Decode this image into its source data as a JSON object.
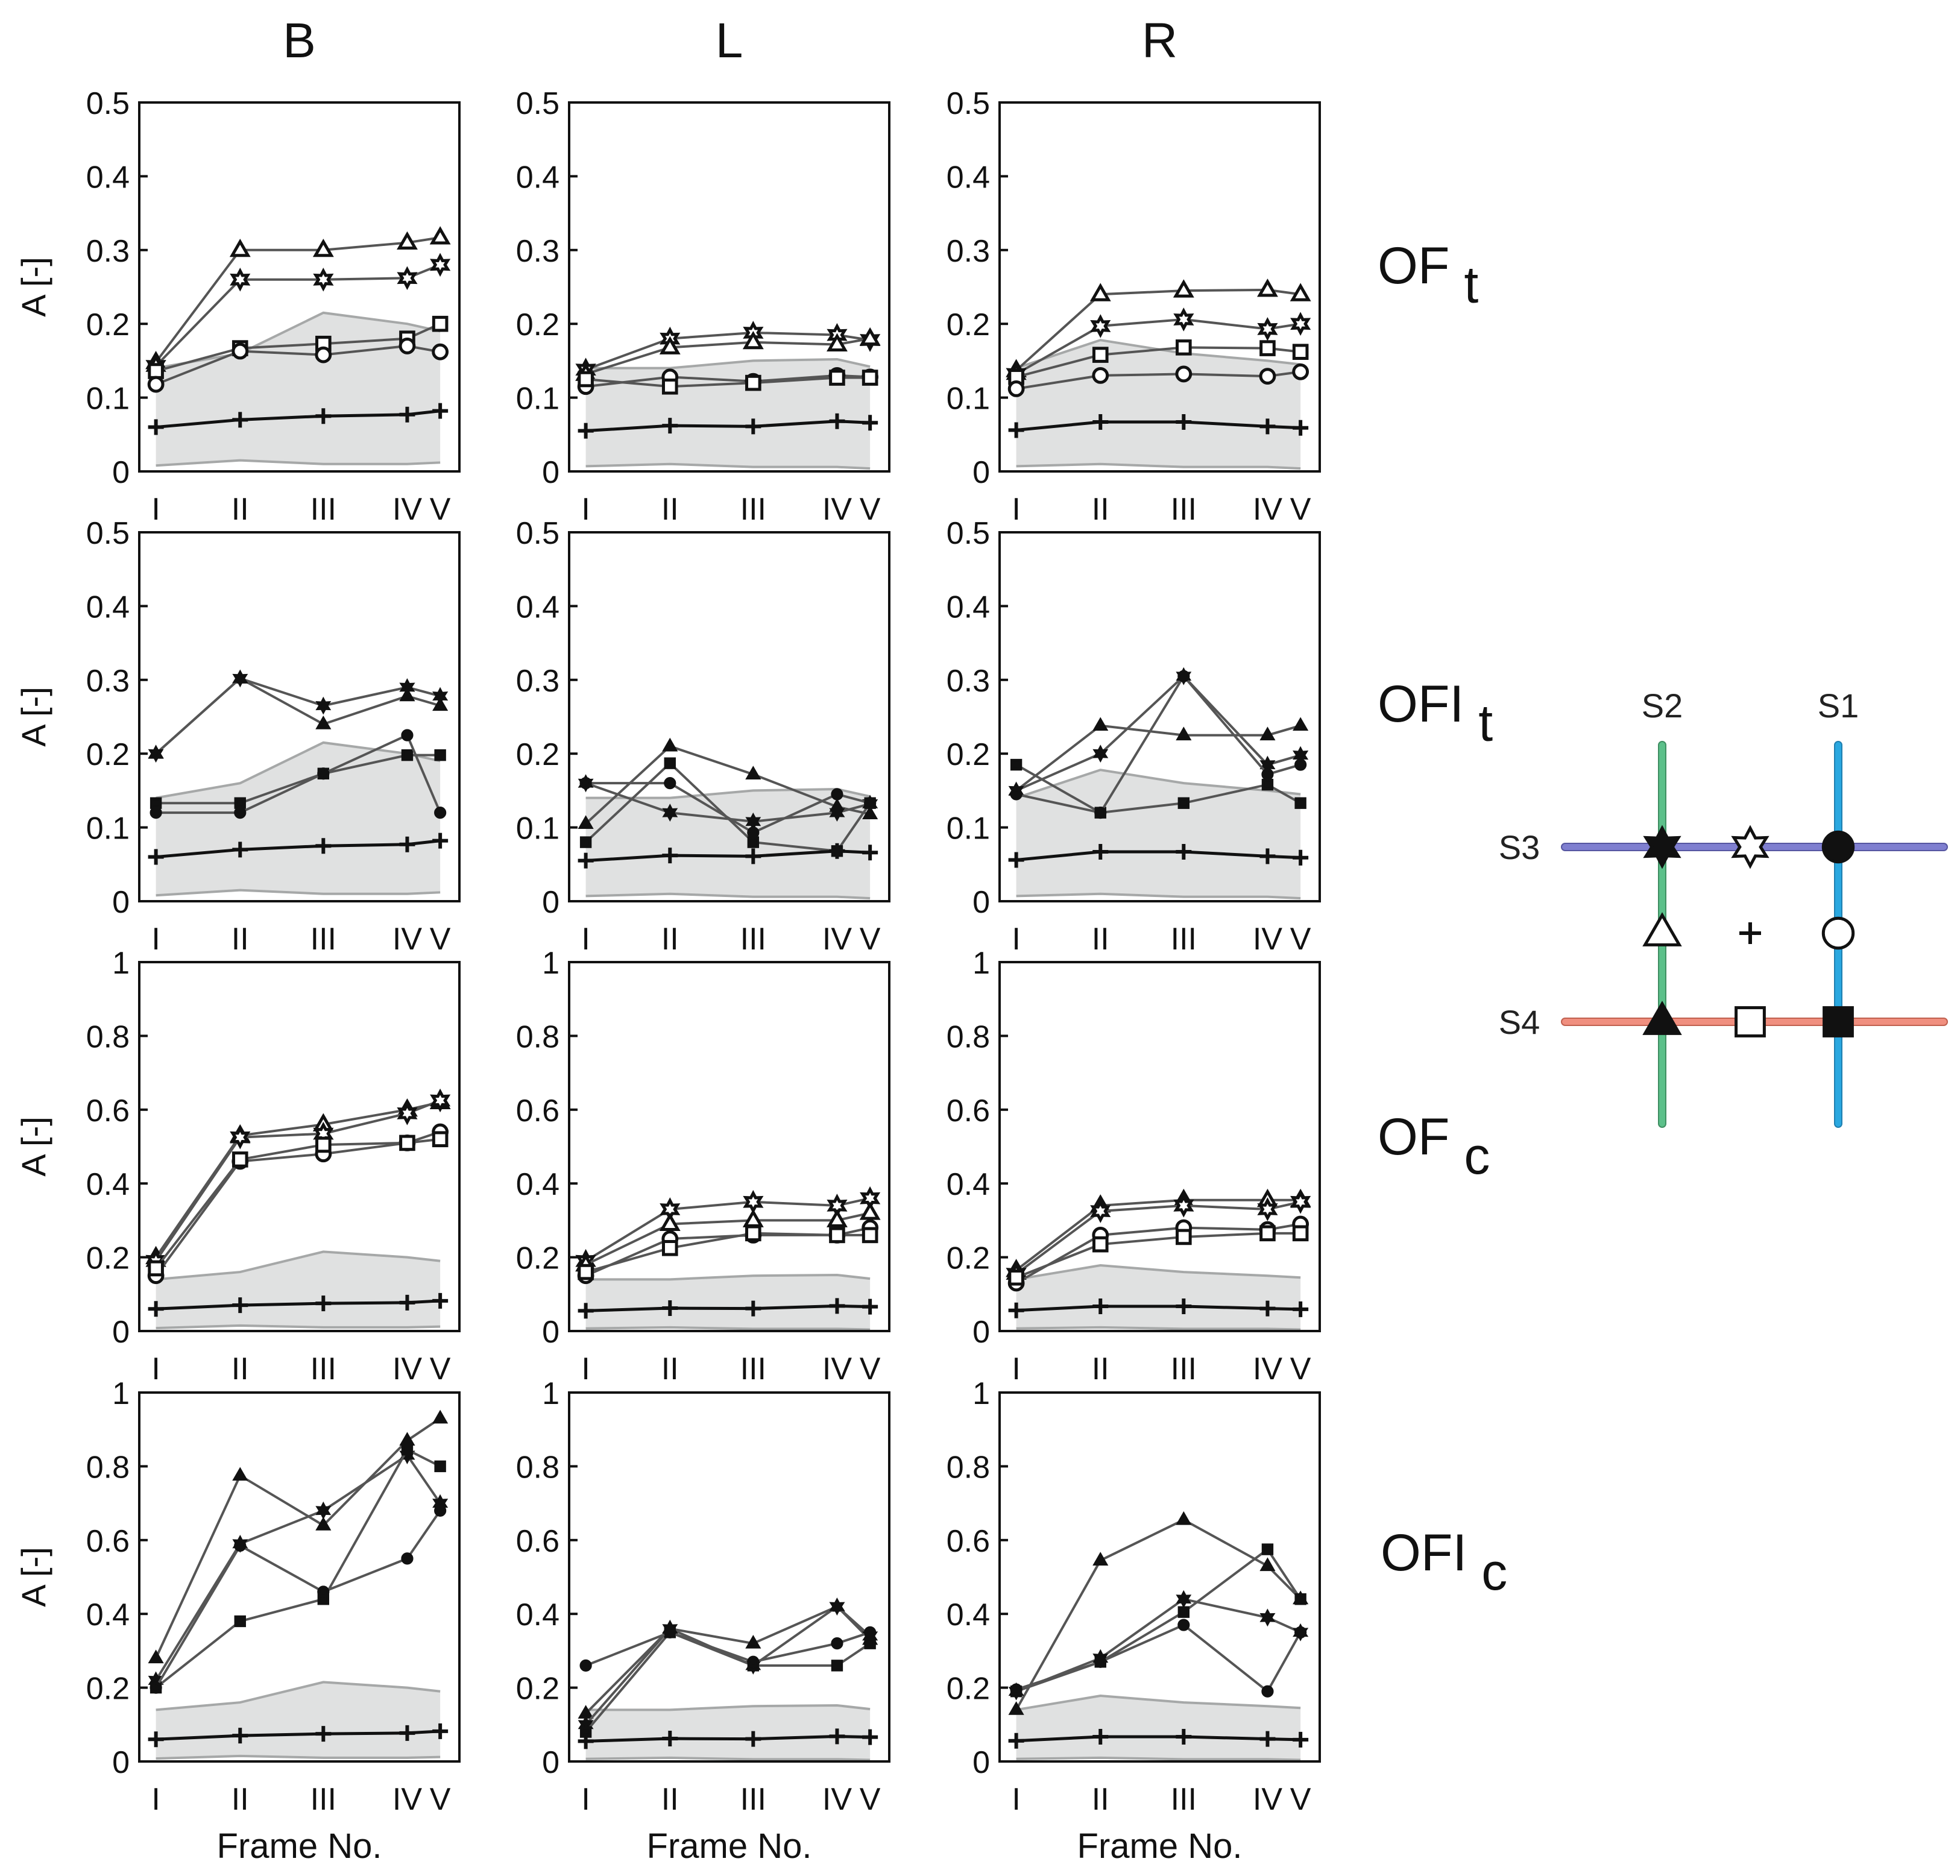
{
  "figure": {
    "columns": [
      "B",
      "L",
      "R"
    ],
    "rows": [
      {
        "label": "OF",
        "sub": "t"
      },
      {
        "label": "OFI",
        "sub": "t"
      },
      {
        "label": "OF",
        "sub": "c"
      },
      {
        "label": "OFI",
        "sub": "c"
      }
    ],
    "xlabel": "Frame No.",
    "ylabel": "A [-]",
    "categories": [
      "I",
      "II",
      "III",
      "IV",
      "V"
    ]
  },
  "legend": {
    "lines": [
      "S1",
      "S2",
      "S3",
      "S4"
    ],
    "colors": {
      "S1": "#2aa8e0",
      "S2": "#5cc08a",
      "S3": "#7f7fd0",
      "S4": "#f08f7f"
    }
  },
  "chart_data": [
    {
      "type": "line",
      "col": "B",
      "row": "OFt",
      "ylim": [
        0,
        0.5
      ],
      "yticks": [
        "0",
        "0.1",
        "0.2",
        "0.3",
        "0.4",
        "0.5"
      ],
      "band": {
        "upper": [
          0.14,
          0.16,
          0.215,
          0.2,
          0.19
        ],
        "lower": [
          0.008,
          0.015,
          0.01,
          0.01,
          0.012
        ]
      },
      "series": [
        {
          "name": "open-triangle",
          "marker": "tri-open",
          "values": [
            0.148,
            0.3,
            0.3,
            0.31,
            0.317
          ]
        },
        {
          "name": "open-star",
          "marker": "star-open",
          "values": [
            0.143,
            0.26,
            0.26,
            0.262,
            0.28
          ]
        },
        {
          "name": "open-square",
          "marker": "sq-open",
          "values": [
            0.136,
            0.167,
            0.173,
            0.18,
            0.2
          ]
        },
        {
          "name": "open-circle",
          "marker": "circ-open",
          "values": [
            0.118,
            0.163,
            0.158,
            0.17,
            0.162
          ]
        },
        {
          "name": "cross",
          "marker": "plus",
          "values": [
            0.06,
            0.07,
            0.075,
            0.077,
            0.082
          ]
        }
      ]
    },
    {
      "type": "line",
      "col": "L",
      "row": "OFt",
      "ylim": [
        0,
        0.5
      ],
      "yticks": [
        "0",
        "0.1",
        "0.2",
        "0.3",
        "0.4",
        "0.5"
      ],
      "band": {
        "upper": [
          0.14,
          0.14,
          0.15,
          0.152,
          0.142
        ],
        "lower": [
          0.007,
          0.01,
          0.006,
          0.006,
          0.004
        ]
      },
      "series": [
        {
          "name": "open-star",
          "marker": "star-open",
          "values": [
            0.138,
            0.18,
            0.188,
            0.185,
            0.178
          ]
        },
        {
          "name": "open-triangle",
          "marker": "tri-open",
          "values": [
            0.132,
            0.168,
            0.175,
            0.172,
            0.18
          ]
        },
        {
          "name": "open-circle",
          "marker": "circ-open",
          "values": [
            0.115,
            0.128,
            0.122,
            0.13,
            0.128
          ]
        },
        {
          "name": "open-square",
          "marker": "sq-open",
          "values": [
            0.125,
            0.115,
            0.12,
            0.127,
            0.127
          ]
        },
        {
          "name": "cross",
          "marker": "plus",
          "values": [
            0.055,
            0.062,
            0.061,
            0.068,
            0.066
          ]
        }
      ]
    },
    {
      "type": "line",
      "col": "R",
      "row": "OFt",
      "ylim": [
        0,
        0.5
      ],
      "yticks": [
        "0",
        "0.1",
        "0.2",
        "0.3",
        "0.4",
        "0.5"
      ],
      "band": {
        "upper": [
          0.14,
          0.178,
          0.16,
          0.15,
          0.145
        ],
        "lower": [
          0.007,
          0.01,
          0.006,
          0.006,
          0.004
        ]
      },
      "series": [
        {
          "name": "open-triangle",
          "marker": "tri-open",
          "values": [
            0.137,
            0.24,
            0.245,
            0.246,
            0.24
          ]
        },
        {
          "name": "open-star",
          "marker": "star-open",
          "values": [
            0.132,
            0.197,
            0.206,
            0.193,
            0.2
          ]
        },
        {
          "name": "open-square",
          "marker": "sq-open",
          "values": [
            0.128,
            0.158,
            0.168,
            0.167,
            0.162
          ]
        },
        {
          "name": "open-circle",
          "marker": "circ-open",
          "values": [
            0.112,
            0.13,
            0.132,
            0.129,
            0.135
          ]
        },
        {
          "name": "cross",
          "marker": "plus",
          "values": [
            0.056,
            0.067,
            0.067,
            0.061,
            0.059
          ]
        }
      ]
    },
    {
      "type": "line",
      "col": "B",
      "row": "OFIt",
      "ylim": [
        0,
        0.5
      ],
      "yticks": [
        "0",
        "0.1",
        "0.2",
        "0.3",
        "0.4",
        "0.5"
      ],
      "band": {
        "upper": [
          0.14,
          0.16,
          0.215,
          0.2,
          0.19
        ],
        "lower": [
          0.008,
          0.015,
          0.01,
          0.01,
          0.012
        ]
      },
      "series": [
        {
          "name": "filled-triangle",
          "marker": "tri-fill",
          "values": [
            0.2,
            0.302,
            0.24,
            0.278,
            0.265
          ]
        },
        {
          "name": "filled-star",
          "marker": "star-fill",
          "values": [
            0.2,
            0.302,
            0.265,
            0.29,
            0.278
          ]
        },
        {
          "name": "filled-square",
          "marker": "sq-fill",
          "values": [
            0.133,
            0.133,
            0.173,
            0.198,
            0.198
          ]
        },
        {
          "name": "filled-circle",
          "marker": "circ-fill",
          "values": [
            0.12,
            0.12,
            0.173,
            0.225,
            0.12
          ]
        },
        {
          "name": "cross",
          "marker": "plus",
          "values": [
            0.06,
            0.07,
            0.075,
            0.077,
            0.082
          ]
        }
      ]
    },
    {
      "type": "line",
      "col": "L",
      "row": "OFIt",
      "ylim": [
        0,
        0.5
      ],
      "yticks": [
        "0",
        "0.1",
        "0.2",
        "0.3",
        "0.4",
        "0.5"
      ],
      "band": {
        "upper": [
          0.14,
          0.14,
          0.15,
          0.152,
          0.142
        ],
        "lower": [
          0.007,
          0.01,
          0.006,
          0.006,
          0.004
        ]
      },
      "series": [
        {
          "name": "filled-triangle",
          "marker": "tri-fill",
          "values": [
            0.105,
            0.21,
            0.172,
            0.128,
            0.118
          ]
        },
        {
          "name": "filled-star",
          "marker": "star-fill",
          "values": [
            0.16,
            0.12,
            0.108,
            0.12,
            0.132
          ]
        },
        {
          "name": "filled-square",
          "marker": "sq-fill",
          "values": [
            0.08,
            0.187,
            0.08,
            0.068,
            0.133
          ]
        },
        {
          "name": "filled-circle",
          "marker": "circ-fill",
          "values": [
            0.16,
            0.16,
            0.093,
            0.145,
            0.133
          ]
        },
        {
          "name": "cross",
          "marker": "plus",
          "values": [
            0.055,
            0.062,
            0.061,
            0.068,
            0.066
          ]
        }
      ]
    },
    {
      "type": "line",
      "col": "R",
      "row": "OFIt",
      "ylim": [
        0,
        0.5
      ],
      "yticks": [
        "0",
        "0.1",
        "0.2",
        "0.3",
        "0.4",
        "0.5"
      ],
      "band": {
        "upper": [
          0.14,
          0.178,
          0.16,
          0.15,
          0.145
        ],
        "lower": [
          0.007,
          0.01,
          0.006,
          0.006,
          0.004
        ]
      },
      "series": [
        {
          "name": "filled-triangle",
          "marker": "tri-fill",
          "values": [
            0.15,
            0.238,
            0.225,
            0.225,
            0.238
          ]
        },
        {
          "name": "filled-star",
          "marker": "star-fill",
          "values": [
            0.15,
            0.2,
            0.305,
            0.185,
            0.198
          ]
        },
        {
          "name": "filled-square",
          "marker": "sq-fill",
          "values": [
            0.185,
            0.12,
            0.133,
            0.158,
            0.133
          ]
        },
        {
          "name": "filled-circle",
          "marker": "circ-fill",
          "values": [
            0.145,
            0.12,
            0.305,
            0.172,
            0.185
          ]
        },
        {
          "name": "cross",
          "marker": "plus",
          "values": [
            0.056,
            0.067,
            0.067,
            0.061,
            0.059
          ]
        }
      ]
    },
    {
      "type": "line",
      "col": "B",
      "row": "OFc",
      "ylim": [
        0,
        1
      ],
      "yticks": [
        "0",
        "0.2",
        "0.4",
        "0.6",
        "0.8",
        "1"
      ],
      "band": {
        "upper": [
          0.14,
          0.16,
          0.215,
          0.2,
          0.19
        ],
        "lower": [
          0.008,
          0.015,
          0.01,
          0.01,
          0.012
        ]
      },
      "series": [
        {
          "name": "open-triangle",
          "marker": "tri-open",
          "values": [
            0.2,
            0.53,
            0.56,
            0.6,
            0.62
          ]
        },
        {
          "name": "open-star",
          "marker": "star-open",
          "values": [
            0.19,
            0.525,
            0.535,
            0.59,
            0.625
          ]
        },
        {
          "name": "open-circle",
          "marker": "circ-open",
          "values": [
            0.15,
            0.46,
            0.48,
            0.51,
            0.54
          ]
        },
        {
          "name": "open-square",
          "marker": "sq-open",
          "values": [
            0.17,
            0.465,
            0.505,
            0.51,
            0.52
          ]
        },
        {
          "name": "cross",
          "marker": "plus",
          "values": [
            0.06,
            0.07,
            0.075,
            0.077,
            0.082
          ]
        }
      ]
    },
    {
      "type": "line",
      "col": "L",
      "row": "OFc",
      "ylim": [
        0,
        1
      ],
      "yticks": [
        "0",
        "0.2",
        "0.4",
        "0.6",
        "0.8",
        "1"
      ],
      "band": {
        "upper": [
          0.14,
          0.14,
          0.15,
          0.152,
          0.142
        ],
        "lower": [
          0.007,
          0.01,
          0.006,
          0.006,
          0.004
        ]
      },
      "series": [
        {
          "name": "open-star",
          "marker": "star-open",
          "values": [
            0.19,
            0.33,
            0.35,
            0.34,
            0.36
          ]
        },
        {
          "name": "open-triangle",
          "marker": "tri-open",
          "values": [
            0.18,
            0.29,
            0.3,
            0.3,
            0.32
          ]
        },
        {
          "name": "open-circle",
          "marker": "circ-open",
          "values": [
            0.15,
            0.25,
            0.26,
            0.26,
            0.28
          ]
        },
        {
          "name": "open-square",
          "marker": "sq-open",
          "values": [
            0.16,
            0.225,
            0.265,
            0.26,
            0.26
          ]
        },
        {
          "name": "cross",
          "marker": "plus",
          "values": [
            0.055,
            0.062,
            0.061,
            0.068,
            0.066
          ]
        }
      ]
    },
    {
      "type": "line",
      "col": "R",
      "row": "OFc",
      "ylim": [
        0,
        1
      ],
      "yticks": [
        "0",
        "0.2",
        "0.4",
        "0.6",
        "0.8",
        "1"
      ],
      "band": {
        "upper": [
          0.14,
          0.178,
          0.16,
          0.15,
          0.145
        ],
        "lower": [
          0.007,
          0.01,
          0.006,
          0.006,
          0.004
        ]
      },
      "series": [
        {
          "name": "open-triangle",
          "marker": "tri-open",
          "values": [
            0.165,
            0.34,
            0.355,
            0.355,
            0.355
          ]
        },
        {
          "name": "open-star",
          "marker": "star-open",
          "values": [
            0.155,
            0.325,
            0.34,
            0.33,
            0.35
          ]
        },
        {
          "name": "open-circle",
          "marker": "circ-open",
          "values": [
            0.13,
            0.26,
            0.28,
            0.275,
            0.29
          ]
        },
        {
          "name": "open-square",
          "marker": "sq-open",
          "values": [
            0.145,
            0.235,
            0.255,
            0.265,
            0.265
          ]
        },
        {
          "name": "cross",
          "marker": "plus",
          "values": [
            0.056,
            0.067,
            0.067,
            0.061,
            0.059
          ]
        }
      ]
    },
    {
      "type": "line",
      "col": "B",
      "row": "OFIc",
      "ylim": [
        0,
        1
      ],
      "yticks": [
        "0",
        "0.2",
        "0.4",
        "0.6",
        "0.8",
        "1"
      ],
      "band": {
        "upper": [
          0.14,
          0.16,
          0.215,
          0.2,
          0.19
        ],
        "lower": [
          0.008,
          0.015,
          0.01,
          0.01,
          0.012
        ]
      },
      "series": [
        {
          "name": "filled-triangle",
          "marker": "tri-fill",
          "values": [
            0.28,
            0.775,
            0.64,
            0.87,
            0.93
          ]
        },
        {
          "name": "filled-star",
          "marker": "star-fill",
          "values": [
            0.22,
            0.59,
            0.68,
            0.83,
            0.7
          ]
        },
        {
          "name": "filled-square",
          "marker": "sq-fill",
          "values": [
            0.2,
            0.38,
            0.44,
            0.845,
            0.8
          ]
        },
        {
          "name": "filled-circle",
          "marker": "circ-fill",
          "values": [
            0.2,
            0.585,
            0.46,
            0.55,
            0.68
          ]
        },
        {
          "name": "cross",
          "marker": "plus",
          "values": [
            0.06,
            0.07,
            0.075,
            0.077,
            0.082
          ]
        }
      ]
    },
    {
      "type": "line",
      "col": "L",
      "row": "OFIc",
      "ylim": [
        0,
        1
      ],
      "yticks": [
        "0",
        "0.2",
        "0.4",
        "0.6",
        "0.8",
        "1"
      ],
      "band": {
        "upper": [
          0.14,
          0.14,
          0.15,
          0.152,
          0.142
        ],
        "lower": [
          0.007,
          0.01,
          0.006,
          0.006,
          0.004
        ]
      },
      "series": [
        {
          "name": "filled-triangle",
          "marker": "tri-fill",
          "values": [
            0.13,
            0.36,
            0.32,
            0.42,
            0.33
          ]
        },
        {
          "name": "filled-star",
          "marker": "star-fill",
          "values": [
            0.1,
            0.36,
            0.26,
            0.42,
            0.34
          ]
        },
        {
          "name": "filled-square",
          "marker": "sq-fill",
          "values": [
            0.08,
            0.35,
            0.26,
            0.26,
            0.32
          ]
        },
        {
          "name": "filled-circle",
          "marker": "circ-fill",
          "values": [
            0.26,
            0.35,
            0.27,
            0.32,
            0.35
          ]
        },
        {
          "name": "cross",
          "marker": "plus",
          "values": [
            0.055,
            0.062,
            0.061,
            0.068,
            0.066
          ]
        }
      ]
    },
    {
      "type": "line",
      "col": "R",
      "row": "OFIc",
      "ylim": [
        0,
        1
      ],
      "yticks": [
        "0",
        "0.2",
        "0.4",
        "0.6",
        "0.8",
        "1"
      ],
      "band": {
        "upper": [
          0.14,
          0.178,
          0.16,
          0.15,
          0.145
        ],
        "lower": [
          0.007,
          0.01,
          0.006,
          0.006,
          0.004
        ]
      },
      "series": [
        {
          "name": "filled-triangle",
          "marker": "tri-fill",
          "values": [
            0.14,
            0.545,
            0.655,
            0.53,
            0.44
          ]
        },
        {
          "name": "filled-star",
          "marker": "star-fill",
          "values": [
            0.19,
            0.28,
            0.44,
            0.39,
            0.35
          ]
        },
        {
          "name": "filled-square",
          "marker": "sq-fill",
          "values": [
            0.19,
            0.27,
            0.405,
            0.575,
            0.44
          ]
        },
        {
          "name": "filled-circle",
          "marker": "circ-fill",
          "values": [
            0.195,
            0.27,
            0.37,
            0.19,
            0.35
          ]
        },
        {
          "name": "cross",
          "marker": "plus",
          "values": [
            0.056,
            0.067,
            0.067,
            0.061,
            0.059
          ]
        }
      ]
    }
  ]
}
